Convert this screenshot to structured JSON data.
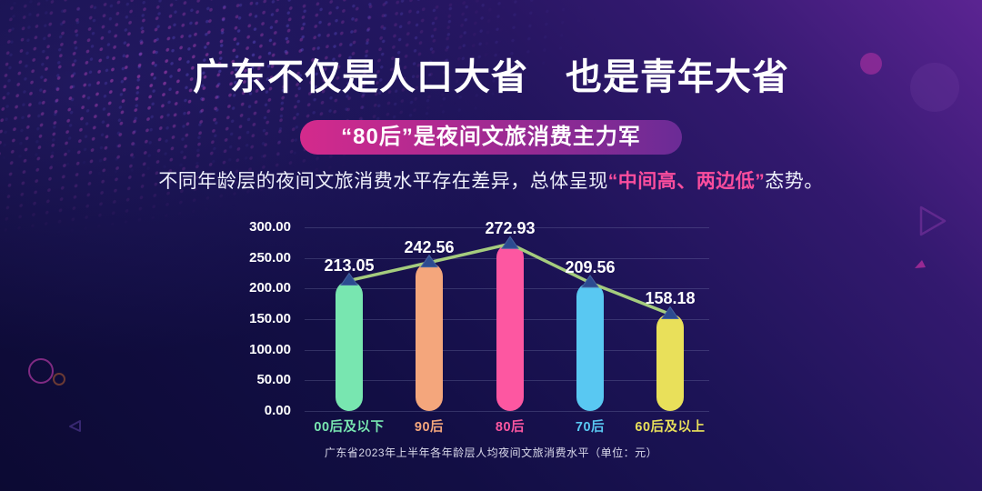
{
  "page": {
    "title": "广东不仅是人口大省　也是青年大省",
    "badge": "“80后”是夜间文旅消费主力军",
    "badge_gradient": [
      "#d42a8c",
      "#a62a92",
      "#6b2b96"
    ],
    "subtitle_prefix": "不同年龄层的夜间文旅消费水平存在差异，总体呈现",
    "subtitle_highlight": "“中间高、两边低”",
    "subtitle_suffix": "态势。",
    "highlight_color": "#fb4d9d"
  },
  "chart_data": {
    "type": "bar",
    "categories": [
      "00后及以下",
      "90后",
      "80后",
      "70后",
      "60后及以上"
    ],
    "values": [
      213.05,
      242.56,
      272.93,
      209.56,
      158.18
    ],
    "value_labels": [
      "213.05",
      "242.56",
      "272.93",
      "209.56",
      "158.18"
    ],
    "bar_colors": [
      "#78e6b0",
      "#f4a67c",
      "#fd57a1",
      "#59c8f2",
      "#e9e05a"
    ],
    "ylim": [
      0,
      300
    ],
    "yticks": [
      "0.00",
      "50.00",
      "100.00",
      "150.00",
      "200.00",
      "250.00",
      "300.00"
    ],
    "grid": true,
    "xlabel": "",
    "ylabel": "",
    "trend_line": {
      "show": true,
      "color": "#a5cc7e",
      "marker": "triangle-up",
      "marker_color": "#2c4b90",
      "marker_edge": "#46639f"
    },
    "caption": "广东省2023年上半年各年龄层人均夜间文旅消费水平（单位：元）"
  }
}
